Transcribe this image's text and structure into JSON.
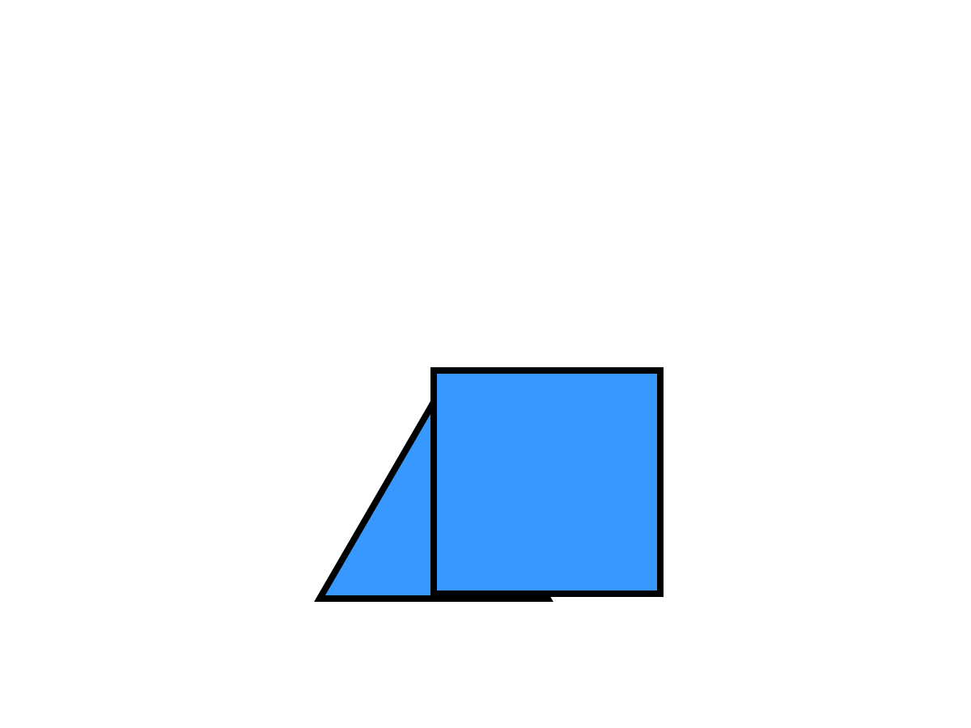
{
  "shapes": {
    "fill_color": "#3798ff",
    "stroke_color": "#000000",
    "items": [
      {
        "name": "triangle",
        "kind": "triangle"
      },
      {
        "name": "square",
        "kind": "square"
      }
    ]
  }
}
